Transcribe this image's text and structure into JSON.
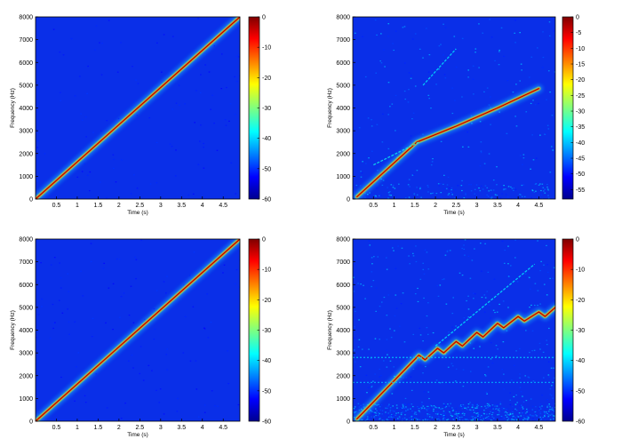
{
  "chart_data": [
    {
      "type": "heatmap",
      "xlabel": "Time (s)",
      "ylabel": "Frequency (Hz)",
      "xlim": [
        0,
        4.9
      ],
      "ylim": [
        0,
        8000
      ],
      "x_ticks": [
        "0.5",
        "1",
        "1.5",
        "2",
        "2.5",
        "3",
        "3.5",
        "4",
        "4.5"
      ],
      "y_ticks": [
        "0",
        "1000",
        "2000",
        "3000",
        "4000",
        "5000",
        "6000",
        "7000",
        "8000"
      ],
      "colorbar": {
        "range": [
          -60,
          0
        ],
        "ticks": [
          "0",
          "-10",
          "-20",
          "-30",
          "-40",
          "-50",
          "-60"
        ]
      },
      "series": [
        {
          "t": [
            0,
            4.9
          ],
          "f": [
            0,
            8000
          ],
          "level": 1.0
        }
      ],
      "noise": "none"
    },
    {
      "type": "heatmap",
      "xlabel": "Time (s)",
      "ylabel": "Frequency (Hz)",
      "xlim": [
        0,
        4.9
      ],
      "ylim": [
        0,
        8000
      ],
      "x_ticks": [
        "0.5",
        "1",
        "1.5",
        "2",
        "2.5",
        "3",
        "3.5",
        "4",
        "4.5"
      ],
      "y_ticks": [
        "0",
        "1000",
        "2000",
        "3000",
        "4000",
        "5000",
        "6000",
        "7000",
        "8000"
      ],
      "colorbar": {
        "range": [
          -58,
          0
        ],
        "ticks": [
          "0",
          "-5",
          "-10",
          "-15",
          "-20",
          "-25",
          "-30",
          "-35",
          "-40",
          "-45",
          "-50",
          "-55"
        ]
      },
      "series": [
        {
          "t": [
            0.1,
            1.55,
            2.5,
            3.5,
            4.5
          ],
          "f": [
            100,
            2500,
            3200,
            4000,
            4850
          ],
          "level": 1.0
        },
        {
          "t": [
            0.5,
            1.6
          ],
          "f": [
            1500,
            2500
          ],
          "level": 0.35
        },
        {
          "t": [
            1.7,
            2.5
          ],
          "f": [
            5000,
            6600
          ],
          "level": 0.3
        }
      ],
      "noise": "light"
    },
    {
      "type": "heatmap",
      "xlabel": "Time (s)",
      "ylabel": "Frequency (Hz)",
      "xlim": [
        0,
        4.9
      ],
      "ylim": [
        0,
        8000
      ],
      "x_ticks": [
        "0.5",
        "1",
        "1.5",
        "2",
        "2.5",
        "3",
        "3.5",
        "4",
        "4.5"
      ],
      "y_ticks": [
        "0",
        "1000",
        "2000",
        "3000",
        "4000",
        "5000",
        "6000",
        "7000",
        "8000"
      ],
      "colorbar": {
        "range": [
          -60,
          0
        ],
        "ticks": [
          "0",
          "-10",
          "-20",
          "-30",
          "-40",
          "-50",
          "-60"
        ]
      },
      "series": [
        {
          "t": [
            0,
            4.9
          ],
          "f": [
            0,
            8000
          ],
          "level": 1.0
        }
      ],
      "noise": "none"
    },
    {
      "type": "heatmap",
      "xlabel": "Time (s)",
      "ylabel": "Frequency (Hz)",
      "xlim": [
        0,
        4.9
      ],
      "ylim": [
        0,
        8000
      ],
      "x_ticks": [
        "0.5",
        "1",
        "1.5",
        "2",
        "2.5",
        "3",
        "3.5",
        "4",
        "4.5"
      ],
      "y_ticks": [
        "0",
        "1000",
        "2000",
        "3000",
        "4000",
        "5000",
        "6000",
        "7000",
        "8000"
      ],
      "colorbar": {
        "range": [
          -60,
          0
        ],
        "ticks": [
          "0",
          "-10",
          "-20",
          "-30",
          "-40",
          "-50",
          "-60"
        ]
      },
      "series": [
        {
          "t": [
            0.1,
            1.6,
            1.75,
            2.05,
            2.2,
            2.5,
            2.65,
            3.0,
            3.15,
            3.5,
            3.65,
            4.0,
            4.15,
            4.5,
            4.65,
            4.9
          ],
          "f": [
            100,
            2900,
            2700,
            3200,
            3000,
            3500,
            3300,
            3900,
            3700,
            4300,
            4100,
            4600,
            4400,
            4800,
            4600,
            5000
          ],
          "level": 1.0
        },
        {
          "t": [
            2.0,
            4.4
          ],
          "f": [
            3300,
            6900
          ],
          "level": 0.3
        },
        {
          "t": [
            0,
            4.9
          ],
          "f": [
            2800,
            2800
          ],
          "level": 0.18
        },
        {
          "t": [
            0,
            4.9
          ],
          "f": [
            1700,
            1700
          ],
          "level": 0.15
        }
      ],
      "noise": "heavy"
    }
  ]
}
